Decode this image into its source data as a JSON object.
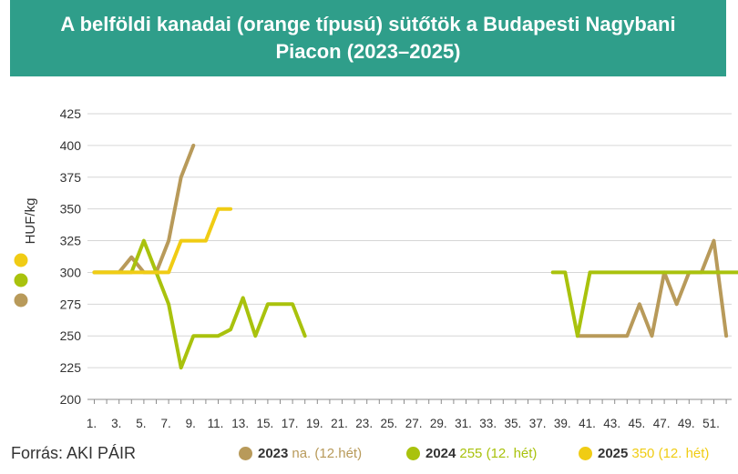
{
  "header": {
    "title": "A belföldi kanadai (orange típusú) sütőtök a Budapesti Nagybani Piacon (2023–2025)"
  },
  "footer": {
    "source": "Forrás: AKI PÁIR"
  },
  "legend": [
    {
      "year": "2023",
      "note": "na. (12.hét)",
      "color": "#b89a5a"
    },
    {
      "year": "2024",
      "note": "255 (12. hét)",
      "color": "#a9c20d"
    },
    {
      "year": "2025",
      "note": "350 (12. hét)",
      "color": "#f0cc14"
    }
  ],
  "chart_data": {
    "type": "line",
    "ylabel": "HUF/kg",
    "ylim": [
      200,
      425
    ],
    "yticks": [
      200,
      225,
      250,
      275,
      300,
      325,
      350,
      375,
      400,
      425
    ],
    "xlim": [
      1,
      53
    ],
    "xtick_labels": [
      "1.",
      "3.",
      "5.",
      "7.",
      "9.",
      "11.",
      "13.",
      "15.",
      "17.",
      "19.",
      "21.",
      "23.",
      "25.",
      "27.",
      "29.",
      "31.",
      "33.",
      "35.",
      "37.",
      "39.",
      "41.",
      "43.",
      "45.",
      "47.",
      "49.",
      "51."
    ],
    "grid": "horizontal",
    "series": [
      {
        "name": "2023",
        "color": "#b89a5a",
        "points": [
          [
            1,
            300
          ],
          [
            2,
            300
          ],
          [
            3,
            300
          ],
          [
            4,
            312
          ],
          [
            5,
            300
          ],
          [
            6,
            300
          ],
          [
            7,
            325
          ],
          [
            8,
            375
          ],
          [
            9,
            400
          ],
          [
            40,
            250
          ],
          [
            41,
            250
          ],
          [
            42,
            250
          ],
          [
            43,
            250
          ],
          [
            44,
            250
          ],
          [
            45,
            275
          ],
          [
            46,
            250
          ],
          [
            47,
            300
          ],
          [
            48,
            275
          ],
          [
            49,
            300
          ],
          [
            50,
            300
          ],
          [
            51,
            325
          ],
          [
            52,
            250
          ]
        ]
      },
      {
        "name": "2024",
        "color": "#a9c20d",
        "points": [
          [
            1,
            300
          ],
          [
            2,
            300
          ],
          [
            3,
            300
          ],
          [
            4,
            300
          ],
          [
            5,
            325
          ],
          [
            6,
            300
          ],
          [
            7,
            275
          ],
          [
            8,
            225
          ],
          [
            9,
            250
          ],
          [
            10,
            250
          ],
          [
            11,
            250
          ],
          [
            12,
            255
          ],
          [
            13,
            280
          ],
          [
            14,
            250
          ],
          [
            15,
            275
          ],
          [
            16,
            275
          ],
          [
            17,
            275
          ],
          [
            18,
            250
          ],
          [
            38,
            300
          ],
          [
            39,
            300
          ],
          [
            40,
            250
          ],
          [
            41,
            300
          ],
          [
            42,
            300
          ],
          [
            43,
            300
          ],
          [
            44,
            300
          ],
          [
            45,
            300
          ],
          [
            46,
            300
          ],
          [
            47,
            300
          ],
          [
            48,
            300
          ],
          [
            49,
            300
          ],
          [
            50,
            300
          ],
          [
            51,
            300
          ],
          [
            52,
            300
          ],
          [
            53,
            300
          ]
        ]
      },
      {
        "name": "2025",
        "color": "#f0cc14",
        "points": [
          [
            1,
            300
          ],
          [
            2,
            300
          ],
          [
            3,
            300
          ],
          [
            4,
            300
          ],
          [
            5,
            300
          ],
          [
            6,
            300
          ],
          [
            7,
            300
          ],
          [
            8,
            325
          ],
          [
            9,
            325
          ],
          [
            10,
            325
          ],
          [
            11,
            350
          ],
          [
            12,
            350
          ]
        ]
      }
    ]
  }
}
